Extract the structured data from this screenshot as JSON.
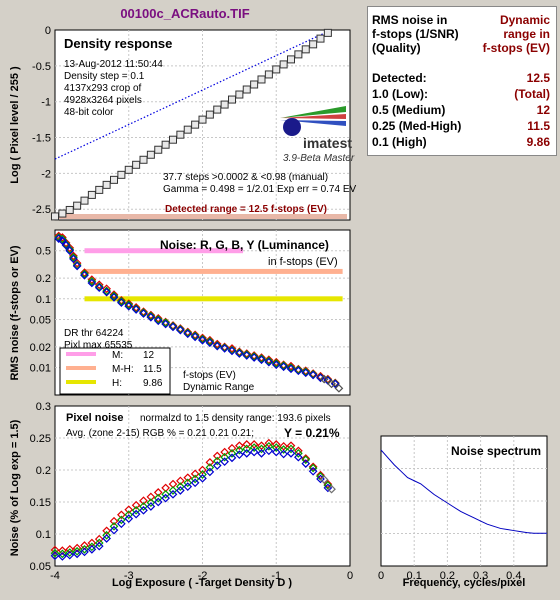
{
  "figure_title": "00100c_ACRauto.TIF",
  "summary": {
    "header_left": [
      "RMS noise in",
      "f-stops (1/SNR)",
      "(Quality)"
    ],
    "header_right": [
      "Dynamic",
      "range in",
      "f-stops (EV)"
    ],
    "rows": [
      {
        "label": "Detected:",
        "value": "12.5"
      },
      {
        "label": "1.0  (Low):",
        "value": "(Total)"
      },
      {
        "label": "0.5  (Medium)",
        "value": "12"
      },
      {
        "label": "0.25 (Med-High)",
        "value": "11.5"
      },
      {
        "label": "0.1  (High)",
        "value": "9.86"
      }
    ]
  },
  "density_panel": {
    "title": "Density response",
    "info": [
      "13-Aug-2012 11:50:44",
      "Density step = 0.1",
      "4137x293 crop of",
      "4928x3264 pixels",
      "48-bit color"
    ],
    "logo_text": "imatest",
    "logo_sub": "3.9-Beta  Master",
    "stats": [
      "37.7 steps >0.0002 & <0.98 (manual)",
      "Gamma = 0.498 = 1/2.01  Exp err = 0.74 EV"
    ],
    "detected": "Detected range = 12.5 f-stops (EV)"
  },
  "noise_panel": {
    "title": "Noise: R, G, B, Y (Luminance)",
    "subtitle": "in f-stops (EV)",
    "dr_notes": [
      "DR thr 64224",
      "Pixl max 65535"
    ],
    "legend": [
      {
        "key": "M:",
        "value": "12",
        "color": "#ff9ee8"
      },
      {
        "key": "M-H:",
        "value": "11.5",
        "color": "#ffb090"
      },
      {
        "key": "H:",
        "value": "9.86",
        "color": "#e6e600"
      }
    ],
    "legend_note": [
      "f-stops (EV)",
      "Dynamic Range"
    ]
  },
  "pixel_panel": {
    "title": "Pixel noise",
    "norm_text": "normalzd to 1.5 density range: 193.6 pixels",
    "avg_text": "Avg. (zone 2-15) RGB % = 0.21  0.21  0.21;",
    "y_text": "Y = 0.21%"
  },
  "spectrum_panel": {
    "title": "Noise spectrum"
  },
  "chart_data": [
    {
      "type": "scatter",
      "title": "Density response",
      "ylabel": "Log ( Pixel level / 255 )",
      "xlim": [
        -4,
        0
      ],
      "ylim": [
        -2.65,
        0
      ],
      "yticks": [
        "0",
        "-0.5",
        "-1",
        "-1.5",
        "-2",
        "-2.5"
      ],
      "series": [
        {
          "x": [
            -4.0,
            -3.9,
            -3.8,
            -3.7,
            -3.6,
            -3.5,
            -3.4,
            -3.3,
            -3.2,
            -3.1,
            -3.0,
            -2.9,
            -2.8,
            -2.7,
            -2.6,
            -2.5,
            -2.4,
            -2.3,
            -2.2,
            -2.1,
            -2.0,
            -1.9,
            -1.8,
            -1.7,
            -1.6,
            -1.5,
            -1.4,
            -1.3,
            -1.2,
            -1.1,
            -1.0,
            -0.9,
            -0.8,
            -0.7,
            -0.6,
            -0.5,
            -0.4,
            -0.3
          ],
          "y": [
            -2.6,
            -2.56,
            -2.51,
            -2.45,
            -2.38,
            -2.3,
            -2.23,
            -2.16,
            -2.09,
            -2.02,
            -1.95,
            -1.88,
            -1.81,
            -1.74,
            -1.67,
            -1.6,
            -1.53,
            -1.46,
            -1.39,
            -1.32,
            -1.25,
            -1.18,
            -1.11,
            -1.04,
            -0.97,
            -0.9,
            -0.83,
            -0.76,
            -0.69,
            -0.62,
            -0.55,
            -0.48,
            -0.41,
            -0.34,
            -0.27,
            -0.2,
            -0.12,
            -0.04
          ]
        },
        {
          "type": "line",
          "x": [
            -4.0,
            -0.3
          ],
          "y": [
            -1.8,
            -0.02
          ]
        }
      ]
    },
    {
      "type": "scatter",
      "ylabel": "RMS noise (f-stops or EV)",
      "yscale": "log",
      "yticks": [
        "0.5",
        "0.2",
        "0.1",
        "0.05",
        "0.02",
        "0.01"
      ],
      "ylim": [
        0.004,
        1.0
      ],
      "xlim": [
        -4,
        0
      ],
      "thresholds": [
        {
          "name": "M",
          "y": 0.5,
          "x": [
            -3.6,
            -1.45
          ]
        },
        {
          "name": "M-H",
          "y": 0.25,
          "x": [
            -3.6,
            -0.1
          ]
        },
        {
          "name": "H",
          "y": 0.1,
          "x": [
            -3.6,
            -0.1
          ]
        }
      ],
      "series": [
        {
          "name": "R",
          "color": "#e00000",
          "x": [
            -3.95,
            -3.9,
            -3.85,
            -3.8,
            -3.75,
            -3.7,
            -3.6,
            -3.5,
            -3.4,
            -3.3,
            -3.2,
            -3.1,
            -3.0,
            -2.9,
            -2.8,
            -2.7,
            -2.6,
            -2.5,
            -2.4,
            -2.3,
            -2.2,
            -2.1,
            -2.0,
            -1.9,
            -1.8,
            -1.7,
            -1.6,
            -1.5,
            -1.4,
            -1.3,
            -1.2,
            -1.1,
            -1.0,
            -0.9,
            -0.8,
            -0.7,
            -0.6,
            -0.5,
            -0.4,
            -0.3,
            -0.2
          ],
          "y": [
            0.82,
            0.78,
            0.65,
            0.55,
            0.42,
            0.33,
            0.24,
            0.19,
            0.16,
            0.14,
            0.115,
            0.095,
            0.085,
            0.075,
            0.065,
            0.058,
            0.052,
            0.046,
            0.041,
            0.037,
            0.033,
            0.03,
            0.027,
            0.025,
            0.022,
            0.02,
            0.019,
            0.017,
            0.016,
            0.015,
            0.014,
            0.013,
            0.012,
            0.011,
            0.0105,
            0.0095,
            0.009,
            0.0082,
            0.0075,
            0.0068,
            0.006
          ]
        },
        {
          "name": "G",
          "color": "#00a000",
          "x": [
            -3.95,
            -3.9,
            -3.85,
            -3.8,
            -3.75,
            -3.7,
            -3.6,
            -3.5,
            -3.4,
            -3.3,
            -3.2,
            -3.1,
            -3.0,
            -2.9,
            -2.8,
            -2.7,
            -2.6,
            -2.5,
            -2.4,
            -2.3,
            -2.2,
            -2.1,
            -2.0,
            -1.9,
            -1.8,
            -1.7,
            -1.6,
            -1.5,
            -1.4,
            -1.3,
            -1.2,
            -1.1,
            -1.0,
            -0.9,
            -0.8,
            -0.7,
            -0.6,
            -0.5,
            -0.4,
            -0.3,
            -0.2
          ],
          "y": [
            0.78,
            0.74,
            0.62,
            0.52,
            0.4,
            0.31,
            0.23,
            0.18,
            0.15,
            0.13,
            0.11,
            0.092,
            0.082,
            0.072,
            0.063,
            0.056,
            0.05,
            0.045,
            0.04,
            0.036,
            0.032,
            0.029,
            0.026,
            0.024,
            0.021,
            0.0195,
            0.018,
            0.0165,
            0.0155,
            0.0145,
            0.0135,
            0.0125,
            0.0115,
            0.0107,
            0.01,
            0.0093,
            0.0087,
            0.008,
            0.0072,
            0.0066,
            0.0059
          ]
        },
        {
          "name": "B",
          "color": "#0000d0",
          "x": [
            -3.95,
            -3.9,
            -3.85,
            -3.8,
            -3.75,
            -3.7,
            -3.6,
            -3.5,
            -3.4,
            -3.3,
            -3.2,
            -3.1,
            -3.0,
            -2.9,
            -2.8,
            -2.7,
            -2.6,
            -2.5,
            -2.4,
            -2.3,
            -2.2,
            -2.1,
            -2.0,
            -1.9,
            -1.8,
            -1.7,
            -1.6,
            -1.5,
            -1.4,
            -1.3,
            -1.2,
            -1.1,
            -1.0,
            -0.9,
            -0.8,
            -0.7,
            -0.6,
            -0.5,
            -0.4,
            -0.3,
            -0.2
          ],
          "y": [
            0.75,
            0.7,
            0.6,
            0.5,
            0.38,
            0.3,
            0.22,
            0.17,
            0.145,
            0.125,
            0.105,
            0.088,
            0.078,
            0.07,
            0.061,
            0.054,
            0.048,
            0.043,
            0.039,
            0.035,
            0.031,
            0.028,
            0.025,
            0.023,
            0.0205,
            0.019,
            0.0175,
            0.016,
            0.015,
            0.014,
            0.013,
            0.012,
            0.011,
            0.0103,
            0.0096,
            0.009,
            0.0084,
            0.0078,
            0.0071,
            0.0065,
            0.0058
          ]
        },
        {
          "name": "Y",
          "color": "#505050",
          "x": [
            -0.35,
            -0.25,
            -0.15
          ],
          "y": [
            0.0068,
            0.0058,
            0.005
          ]
        }
      ]
    },
    {
      "type": "scatter",
      "xlabel": "Log Exposure ( -Target Density D )",
      "ylabel": "Noise (% of Log exp = 1.5)",
      "xlim": [
        -4,
        0
      ],
      "ylim": [
        0.05,
        0.3
      ],
      "xticks": [
        "-4",
        "-3",
        "-2",
        "-1",
        "0"
      ],
      "yticks": [
        "0.3",
        "0.25",
        "0.2",
        "0.15",
        "0.1",
        "0.05"
      ],
      "series": [
        {
          "name": "R",
          "color": "#e00000",
          "x": [
            -4.0,
            -3.9,
            -3.8,
            -3.7,
            -3.6,
            -3.5,
            -3.4,
            -3.3,
            -3.2,
            -3.1,
            -3.0,
            -2.9,
            -2.8,
            -2.7,
            -2.6,
            -2.5,
            -2.4,
            -2.3,
            -2.2,
            -2.1,
            -2.0,
            -1.9,
            -1.8,
            -1.7,
            -1.6,
            -1.5,
            -1.4,
            -1.3,
            -1.2,
            -1.1,
            -1.0,
            -0.9,
            -0.8,
            -0.7,
            -0.6,
            -0.5,
            -0.4,
            -0.3
          ],
          "y": [
            0.075,
            0.074,
            0.076,
            0.078,
            0.082,
            0.086,
            0.092,
            0.105,
            0.12,
            0.13,
            0.138,
            0.145,
            0.152,
            0.158,
            0.165,
            0.172,
            0.178,
            0.183,
            0.188,
            0.194,
            0.2,
            0.212,
            0.222,
            0.228,
            0.234,
            0.238,
            0.24,
            0.24,
            0.238,
            0.242,
            0.24,
            0.237,
            0.238,
            0.23,
            0.218,
            0.205,
            0.192,
            0.178
          ]
        },
        {
          "name": "G",
          "color": "#00a000",
          "x": [
            -4.0,
            -3.9,
            -3.8,
            -3.7,
            -3.6,
            -3.5,
            -3.4,
            -3.3,
            -3.2,
            -3.1,
            -3.0,
            -2.9,
            -2.8,
            -2.7,
            -2.6,
            -2.5,
            -2.4,
            -2.3,
            -2.2,
            -2.1,
            -2.0,
            -1.9,
            -1.8,
            -1.7,
            -1.6,
            -1.5,
            -1.4,
            -1.3,
            -1.2,
            -1.1,
            -1.0,
            -0.9,
            -0.8,
            -0.7,
            -0.6,
            -0.5,
            -0.4,
            -0.3
          ],
          "y": [
            0.07,
            0.069,
            0.071,
            0.073,
            0.076,
            0.08,
            0.086,
            0.098,
            0.112,
            0.122,
            0.13,
            0.137,
            0.143,
            0.149,
            0.156,
            0.162,
            0.168,
            0.174,
            0.18,
            0.186,
            0.193,
            0.204,
            0.214,
            0.22,
            0.226,
            0.231,
            0.233,
            0.235,
            0.233,
            0.237,
            0.235,
            0.232,
            0.233,
            0.226,
            0.216,
            0.203,
            0.19,
            0.176
          ]
        },
        {
          "name": "B",
          "color": "#0000d0",
          "x": [
            -4.0,
            -3.9,
            -3.8,
            -3.7,
            -3.6,
            -3.5,
            -3.4,
            -3.3,
            -3.2,
            -3.1,
            -3.0,
            -2.9,
            -2.8,
            -2.7,
            -2.6,
            -2.5,
            -2.4,
            -2.3,
            -2.2,
            -2.1,
            -2.0,
            -1.9,
            -1.8,
            -1.7,
            -1.6,
            -1.5,
            -1.4,
            -1.3,
            -1.2,
            -1.1,
            -1.0,
            -0.9,
            -0.8,
            -0.7,
            -0.6,
            -0.5,
            -0.4,
            -0.3
          ],
          "y": [
            0.066,
            0.065,
            0.067,
            0.069,
            0.072,
            0.076,
            0.081,
            0.093,
            0.106,
            0.116,
            0.124,
            0.131,
            0.137,
            0.143,
            0.15,
            0.156,
            0.162,
            0.168,
            0.174,
            0.18,
            0.187,
            0.197,
            0.207,
            0.213,
            0.219,
            0.224,
            0.226,
            0.228,
            0.226,
            0.23,
            0.228,
            0.225,
            0.226,
            0.22,
            0.21,
            0.198,
            0.186,
            0.172
          ]
        },
        {
          "name": "Y",
          "color": "#707070",
          "x": [
            -0.35,
            -0.25
          ],
          "y": [
            0.185,
            0.17
          ]
        }
      ]
    },
    {
      "type": "line",
      "title": "Noise spectrum",
      "xlabel": "Frequency, cycles/pixel",
      "xlim": [
        0,
        0.5
      ],
      "xticks": [
        "0",
        "0.1",
        "0.2",
        "0.3",
        "0.4"
      ],
      "series": [
        {
          "x": [
            0.0,
            0.02,
            0.04,
            0.06,
            0.08,
            0.1,
            0.12,
            0.14,
            0.16,
            0.18,
            0.2,
            0.22,
            0.24,
            0.26,
            0.28,
            0.3,
            0.32,
            0.34,
            0.36,
            0.38,
            0.4,
            0.42,
            0.44,
            0.46,
            0.48,
            0.5
          ],
          "y": [
            1.0,
            0.93,
            0.86,
            0.8,
            0.74,
            0.71,
            0.68,
            0.63,
            0.58,
            0.54,
            0.5,
            0.46,
            0.42,
            0.39,
            0.36,
            0.33,
            0.3,
            0.28,
            0.26,
            0.25,
            0.24,
            0.23,
            0.22,
            0.215,
            0.215,
            0.215
          ]
        }
      ]
    }
  ]
}
